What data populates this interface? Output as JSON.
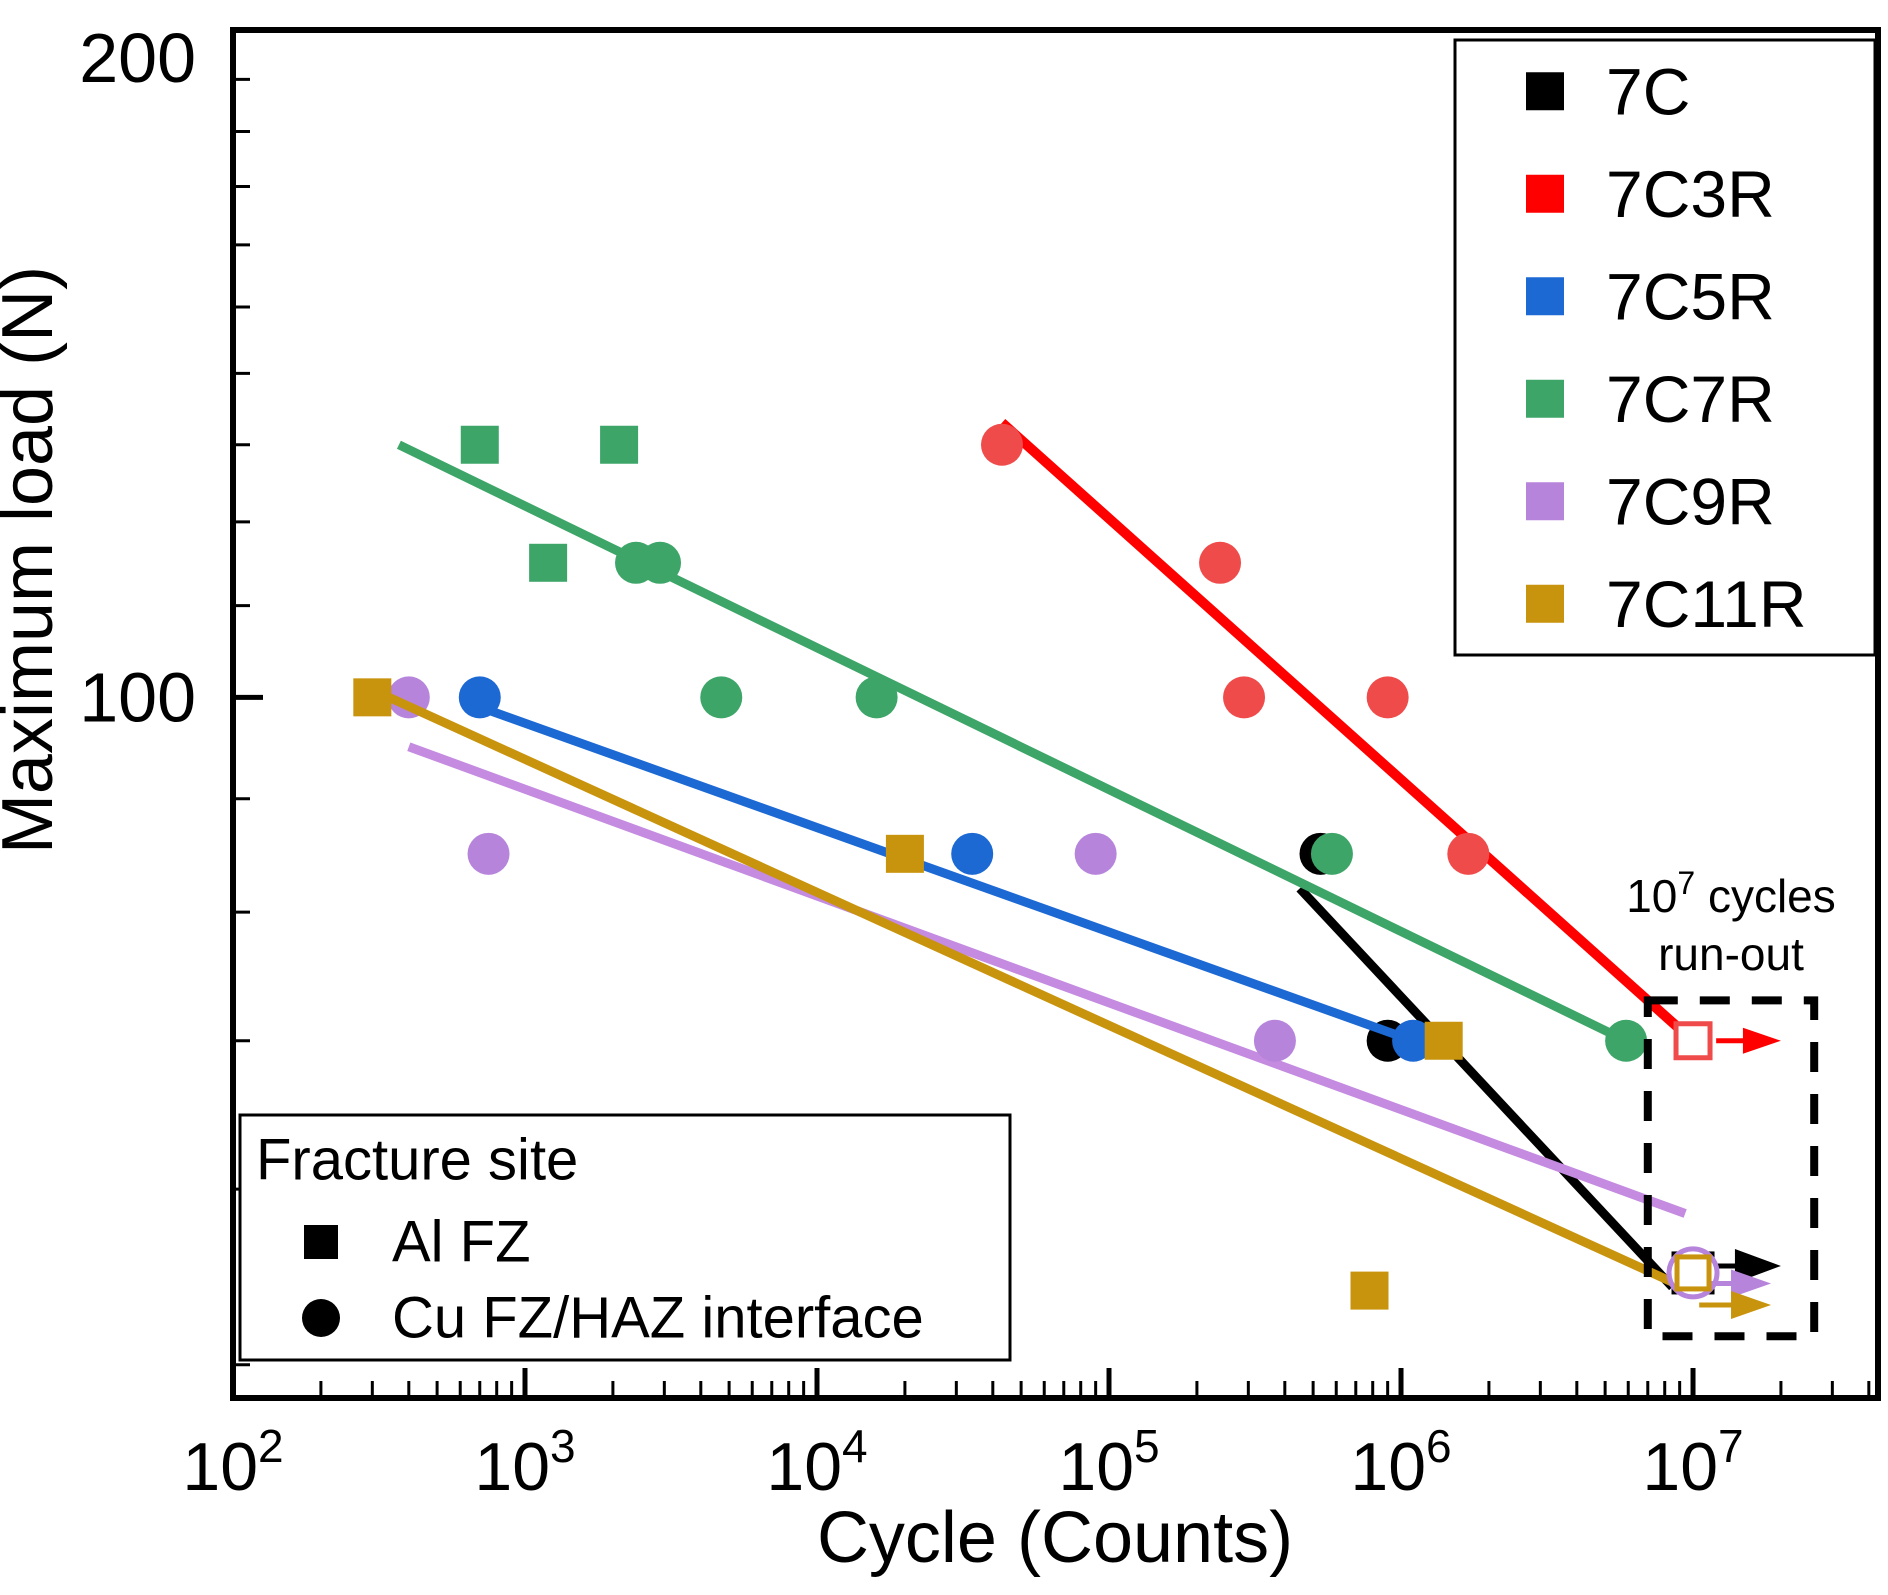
{
  "chart_data": {
    "type": "scatter",
    "title": "",
    "xlabel": "Cycle (Counts)",
    "ylabel": "Maximum load (N)",
    "xscale": "log",
    "yscale": "log",
    "xlim": [
      100,
      43000000
    ],
    "ylim": [
      48.3,
      200
    ],
    "grid": false,
    "x_major_ticks": [
      {
        "value": 100,
        "base": "10",
        "exp": "2"
      },
      {
        "value": 1000,
        "base": "10",
        "exp": "3"
      },
      {
        "value": 10000,
        "base": "10",
        "exp": "4"
      },
      {
        "value": 100000,
        "base": "10",
        "exp": "5"
      },
      {
        "value": 1000000,
        "base": "10",
        "exp": "6"
      },
      {
        "value": 10000000,
        "base": "10",
        "exp": "7"
      }
    ],
    "x_minor_exponents": [
      2,
      3,
      4,
      5,
      6,
      7
    ],
    "y_major_ticks": [
      {
        "value": 200,
        "label": "200"
      },
      {
        "value": 100,
        "label": "100"
      }
    ],
    "y_minor_ticks": [
      50,
      60,
      70,
      80,
      90,
      110,
      120,
      130,
      140,
      150,
      160,
      170,
      180,
      190
    ],
    "legend_position": "top-right",
    "legend": {
      "items": [
        {
          "series": "7C",
          "label": "7C",
          "color": "#000000"
        },
        {
          "series": "7C3R",
          "label": "7C3R",
          "color": "#FE0000"
        },
        {
          "series": "7C5R",
          "label": "7C5R",
          "color": "#1D69D4"
        },
        {
          "series": "7C7R",
          "label": "7C7R",
          "color": "#3DA568"
        },
        {
          "series": "7C9R",
          "label": "7C9R",
          "color": "#B784DC"
        },
        {
          "series": "7C11R",
          "label": "7C11R",
          "color": "#C9940D"
        }
      ]
    },
    "fracture_legend": {
      "title": "Fracture site",
      "items": [
        {
          "marker": "square",
          "label": "Al FZ"
        },
        {
          "marker": "circle",
          "label": "Cu FZ/HAZ interface"
        }
      ]
    },
    "runout_annotation": {
      "line1_base": "10",
      "line1_sup": "7",
      "line1_rest": " cycles",
      "line2": "run-out"
    },
    "runout_box": {
      "x1": 7000000,
      "x2": 26000000,
      "y1": 73,
      "y2": 51.5
    },
    "series": [
      {
        "id": "7C",
        "label": "7C",
        "marker_color": "#000000",
        "line_color": "#000000",
        "line": {
          "x1": 450000,
          "y1": 82,
          "x2": 8500000,
          "y2": 54.2
        },
        "points": [
          {
            "x": 530000,
            "y": 85,
            "site": "Cu FZ/HAZ interface"
          },
          {
            "x": 900000,
            "y": 70,
            "site": "Cu FZ/HAZ interface"
          }
        ],
        "runout": {
          "x": 10000000,
          "y": 55,
          "shape": "square",
          "size": 38
        },
        "runout_arrow": {
          "y": 55.4,
          "x1": 10500000,
          "x2": 20000000,
          "head": 46,
          "half": 17
        }
      },
      {
        "id": "7C5R",
        "label": "7C5R",
        "marker_color": "#1D69D4",
        "line_color": "#1D69D4",
        "line": {
          "x1": 700,
          "y1": 99,
          "x2": 1100000,
          "y2": 70
        },
        "points": [
          {
            "x": 700,
            "y": 100,
            "site": "Cu FZ/HAZ interface"
          },
          {
            "x": 34000,
            "y": 85,
            "site": "Cu FZ/HAZ interface"
          },
          {
            "x": 1100000,
            "y": 70,
            "site": "Cu FZ/HAZ interface"
          }
        ],
        "runout": null,
        "runout_arrow": null
      },
      {
        "id": "7C9R",
        "label": "7C9R",
        "marker_color": "#B784DC",
        "line_color": "#C48BE0",
        "line": {
          "x1": 400,
          "y1": 95,
          "x2": 9400000,
          "y2": 58.5
        },
        "points": [
          {
            "x": 400,
            "y": 100,
            "site": "Cu FZ/HAZ interface"
          },
          {
            "x": 750,
            "y": 85,
            "site": "Cu FZ/HAZ interface"
          },
          {
            "x": 90000,
            "y": 85,
            "site": "Cu FZ/HAZ interface"
          },
          {
            "x": 370000,
            "y": 70,
            "site": "Cu FZ/HAZ interface"
          }
        ],
        "runout": {
          "x": 10000000,
          "y": 55,
          "shape": "circle",
          "size": 48
        },
        "runout_arrow": {
          "y": 54.4,
          "x1": 10500000,
          "x2": 18500000,
          "head": 40,
          "half": 14
        }
      },
      {
        "id": "7C11R",
        "label": "7C11R",
        "marker_color": "#C9940D",
        "line_color": "#C9940D",
        "line": {
          "x1": 290,
          "y1": 101,
          "x2": 8700000,
          "y2": 54.4
        },
        "points": [
          {
            "x": 300,
            "y": 100,
            "site": "Al FZ"
          },
          {
            "x": 20000,
            "y": 85,
            "site": "Al FZ"
          },
          {
            "x": 1400000,
            "y": 70,
            "site": "Al FZ"
          },
          {
            "x": 780000,
            "y": 54,
            "site": "Al FZ"
          }
        ],
        "runout": {
          "x": 10000000,
          "y": 55,
          "shape": "square",
          "size": 32
        },
        "runout_arrow": {
          "y": 53.2,
          "x1": 10500000,
          "x2": 18500000,
          "head": 40,
          "half": 14
        }
      },
      {
        "id": "7C7R",
        "label": "7C7R",
        "marker_color": "#3DA568",
        "line_color": "#3DA568",
        "line": {
          "x1": 370,
          "y1": 130,
          "x2": 5900000,
          "y2": 70
        },
        "points": [
          {
            "x": 700,
            "y": 130,
            "site": "Al FZ"
          },
          {
            "x": 2100,
            "y": 130,
            "site": "Al FZ"
          },
          {
            "x": 1200,
            "y": 115,
            "site": "Al FZ"
          },
          {
            "x": 2400,
            "y": 115,
            "site": "Cu FZ/HAZ interface"
          },
          {
            "x": 2900,
            "y": 115,
            "site": "Cu FZ/HAZ interface"
          },
          {
            "x": 4700,
            "y": 100,
            "site": "Cu FZ/HAZ interface"
          },
          {
            "x": 16000,
            "y": 100,
            "site": "Cu FZ/HAZ interface"
          },
          {
            "x": 580000,
            "y": 85,
            "site": "Cu FZ/HAZ interface"
          },
          {
            "x": 5900000,
            "y": 70,
            "site": "Cu FZ/HAZ interface"
          }
        ],
        "runout": null,
        "runout_arrow": null
      },
      {
        "id": "7C3R",
        "label": "7C3R",
        "marker_color": "#F04B4B",
        "line_color": "#FE0000",
        "line": {
          "x1": 43000,
          "y1": 133,
          "x2": 9400000,
          "y2": 70.5
        },
        "points": [
          {
            "x": 43000,
            "y": 130,
            "site": "Cu FZ/HAZ interface"
          },
          {
            "x": 240000,
            "y": 115,
            "site": "Cu FZ/HAZ interface"
          },
          {
            "x": 290000,
            "y": 100,
            "site": "Cu FZ/HAZ interface"
          },
          {
            "x": 900000,
            "y": 100,
            "site": "Cu FZ/HAZ interface"
          },
          {
            "x": 1700000,
            "y": 85,
            "site": "Cu FZ/HAZ interface"
          }
        ],
        "runout": {
          "x": 10000000,
          "y": 70,
          "shape": "square",
          "size": 34
        },
        "runout_arrow": {
          "y": 70,
          "x1": 12000000,
          "x2": 20000000,
          "head": 38,
          "half": 13
        }
      }
    ]
  }
}
